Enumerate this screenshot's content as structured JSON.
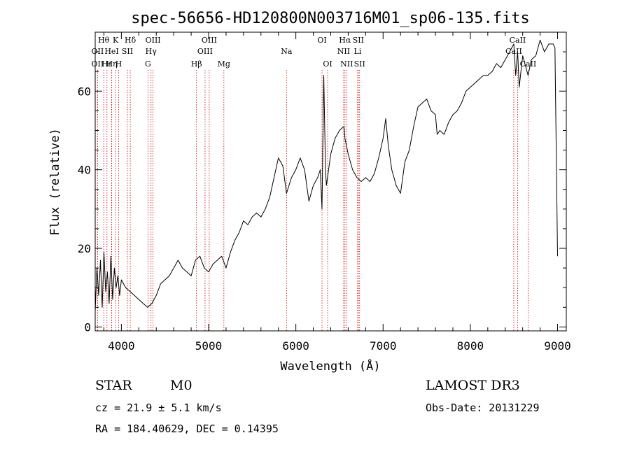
{
  "chart_data": {
    "type": "line",
    "title": "spec-56656-HD120800N003716M01_sp06-135.fits",
    "xlabel": "Wavelength (Å)",
    "ylabel": "Flux (relative)",
    "xlim": [
      3700,
      9100
    ],
    "ylim": [
      -1,
      75
    ],
    "xticks": [
      4000,
      5000,
      6000,
      7000,
      8000,
      9000
    ],
    "yticks": [
      0,
      20,
      40,
      60
    ],
    "grid": false,
    "series": [
      {
        "x": [
          3700,
          3720,
          3740,
          3760,
          3780,
          3800,
          3820,
          3840,
          3860,
          3880,
          3900,
          3920,
          3940,
          3960,
          3980,
          4000,
          4050,
          4100,
          4150,
          4200,
          4250,
          4300,
          4350,
          4400,
          4450,
          4500,
          4550,
          4600,
          4650,
          4700,
          4750,
          4800,
          4850,
          4900,
          4950,
          5000,
          5050,
          5100,
          5150,
          5200,
          5250,
          5300,
          5350,
          5400,
          5450,
          5500,
          5550,
          5600,
          5650,
          5700,
          5750,
          5800,
          5850,
          5893,
          5950,
          6000,
          6050,
          6100,
          6150,
          6200,
          6250,
          6280,
          6300,
          6320,
          6340,
          6350,
          6400,
          6450,
          6500,
          6550,
          6563,
          6600,
          6650,
          6700,
          6750,
          6800,
          6850,
          6900,
          6950,
          7000,
          7030,
          7060,
          7100,
          7150,
          7200,
          7250,
          7300,
          7350,
          7400,
          7450,
          7500,
          7550,
          7600,
          7620,
          7650,
          7700,
          7750,
          7800,
          7850,
          7900,
          7950,
          8000,
          8050,
          8100,
          8150,
          8200,
          8250,
          8300,
          8350,
          8400,
          8450,
          8498,
          8520,
          8542,
          8560,
          8600,
          8662,
          8700,
          8750,
          8800,
          8850,
          8900,
          8950,
          8970,
          9000
        ],
        "y": [
          4,
          15,
          8,
          17,
          5,
          19,
          9,
          14,
          6,
          18,
          7,
          15,
          10,
          13,
          8,
          12,
          10,
          9,
          8,
          7,
          6,
          5,
          6,
          8,
          11,
          12,
          13,
          15,
          17,
          15,
          14,
          13,
          17,
          18,
          15,
          14,
          16,
          17,
          18,
          15,
          19,
          22,
          24,
          27,
          26,
          28,
          29,
          28,
          30,
          33,
          38,
          43,
          41,
          34,
          38,
          40,
          43,
          40,
          32,
          36,
          38,
          40,
          30,
          64,
          40,
          36,
          44,
          48,
          50,
          51,
          48,
          44,
          40,
          38,
          37,
          38,
          37,
          39,
          43,
          48,
          53,
          46,
          40,
          36,
          34,
          42,
          45,
          51,
          56,
          57,
          58,
          55,
          54,
          49,
          50,
          49,
          52,
          54,
          55,
          57,
          60,
          61,
          62,
          63,
          64,
          64,
          65,
          67,
          66,
          68,
          70,
          72,
          64,
          70,
          61,
          69,
          64,
          68,
          69,
          73,
          70,
          72,
          72,
          71,
          18
        ]
      }
    ],
    "line_markers": [
      {
        "label": "Hθ",
        "x": 3798,
        "row": 0
      },
      {
        "label": "OII",
        "x": 3727,
        "row": 1
      },
      {
        "label": "OII",
        "x": 3727,
        "row": 2
      },
      {
        "label": "Hε",
        "x": 3835,
        "row": 2
      },
      {
        "label": "K",
        "x": 3934,
        "row": 0
      },
      {
        "label": "HeI",
        "x": 3889,
        "row": 1
      },
      {
        "label": "Hη",
        "x": 3889,
        "row": 2
      },
      {
        "label": "Hδ",
        "x": 4102,
        "row": 0
      },
      {
        "label": "SII",
        "x": 4069,
        "row": 1
      },
      {
        "label": "H",
        "x": 3969,
        "row": 2
      },
      {
        "label": "OIII",
        "x": 4363,
        "row": 0
      },
      {
        "label": "Hγ",
        "x": 4340,
        "row": 1
      },
      {
        "label": "G",
        "x": 4305,
        "row": 2
      },
      {
        "label": "OIII",
        "x": 5007,
        "row": 0
      },
      {
        "label": "OIII",
        "x": 4959,
        "row": 1
      },
      {
        "label": "Hβ",
        "x": 4861,
        "row": 2
      },
      {
        "label": "Mg",
        "x": 5175,
        "row": 2
      },
      {
        "label": "Na",
        "x": 5893,
        "row": 1
      },
      {
        "label": "OI",
        "x": 6300,
        "row": 0
      },
      {
        "label": "OI",
        "x": 6364,
        "row": 2
      },
      {
        "label": "Hα",
        "x": 6563,
        "row": 0
      },
      {
        "label": "SII",
        "x": 6716,
        "row": 0
      },
      {
        "label": "NII",
        "x": 6548,
        "row": 1
      },
      {
        "label": "Li",
        "x": 6708,
        "row": 1
      },
      {
        "label": "NII",
        "x": 6583,
        "row": 2
      },
      {
        "label": "SII",
        "x": 6731,
        "row": 2
      },
      {
        "label": "CaII",
        "x": 8542,
        "row": 0
      },
      {
        "label": "CaII",
        "x": 8498,
        "row": 1
      },
      {
        "label": "CaII",
        "x": 8662,
        "row": 2
      }
    ]
  },
  "info": {
    "class": "STAR",
    "subclass": "M0",
    "survey": "LAMOST DR3",
    "cz": "cz = 21.9 ± 5.1 km/s",
    "obs_date": "Obs-Date: 20131229",
    "radec": "RA = 184.40629, DEC =    0.14395"
  },
  "colors": {
    "spectrum": "#000000",
    "line_markers": "#cc0000",
    "axes": "#000000"
  }
}
